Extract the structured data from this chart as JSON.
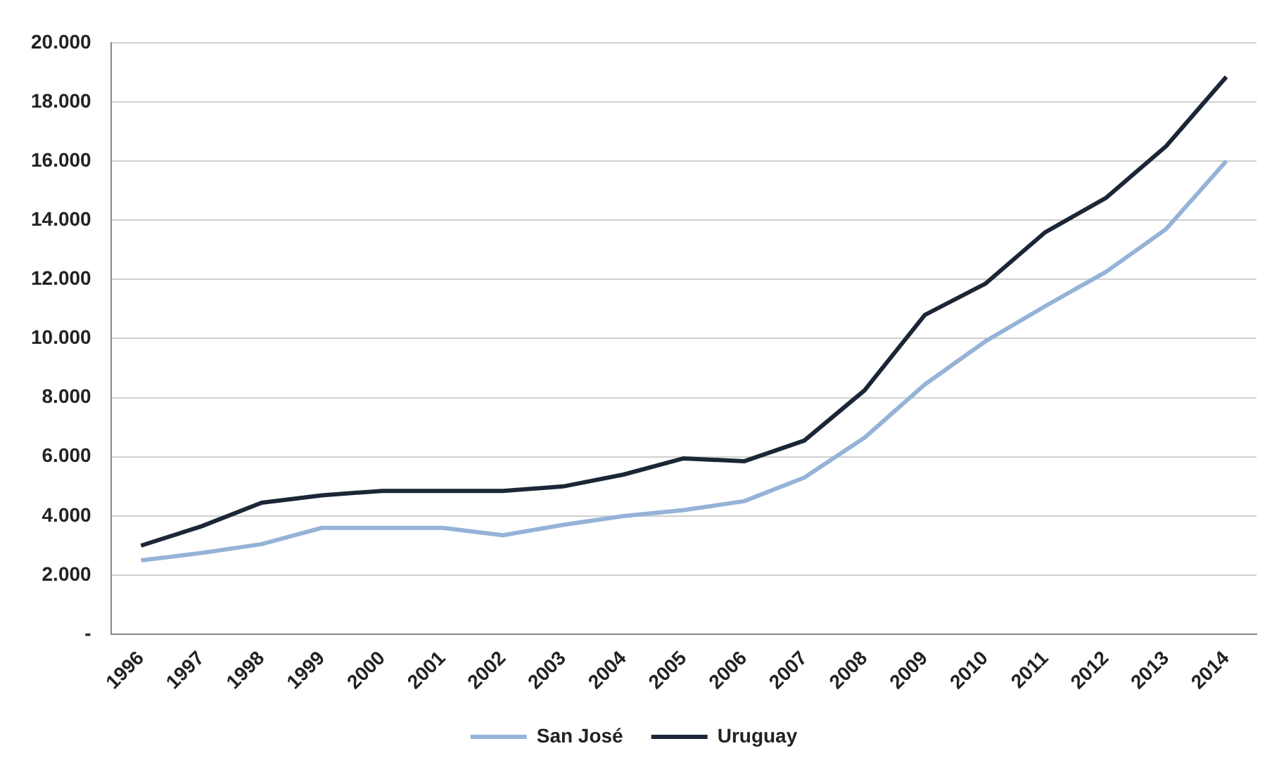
{
  "chart_data": {
    "type": "line",
    "categories": [
      "1996",
      "1997",
      "1998",
      "1999",
      "2000",
      "2001",
      "2002",
      "2003",
      "2004",
      "2005",
      "2006",
      "2007",
      "2008",
      "2009",
      "2010",
      "2011",
      "2012",
      "2013",
      "2014"
    ],
    "series": [
      {
        "name": "San José",
        "color": "#95b3d7",
        "values": [
          2500,
          2750,
          3050,
          3600,
          3600,
          3600,
          3350,
          3700,
          4000,
          4200,
          4500,
          5300,
          6650,
          8450,
          9900,
          11100,
          12250,
          13700,
          16000
        ]
      },
      {
        "name": "Uruguay",
        "color": "#1b2636",
        "values": [
          3000,
          3650,
          4450,
          4700,
          4850,
          4850,
          4850,
          5000,
          5400,
          5950,
          5850,
          6550,
          8250,
          10800,
          11850,
          13600,
          14750,
          16500,
          18850
        ]
      }
    ],
    "ylim": [
      0,
      20000
    ],
    "yticks": [
      {
        "value": 0,
        "label": "-"
      },
      {
        "value": 2000,
        "label": "2.000"
      },
      {
        "value": 4000,
        "label": "4.000"
      },
      {
        "value": 6000,
        "label": "6.000"
      },
      {
        "value": 8000,
        "label": "8.000"
      },
      {
        "value": 10000,
        "label": "10.000"
      },
      {
        "value": 12000,
        "label": "12.000"
      },
      {
        "value": 14000,
        "label": "14.000"
      },
      {
        "value": 16000,
        "label": "16.000"
      },
      {
        "value": 18000,
        "label": "18.000"
      },
      {
        "value": 20000,
        "label": "20.000"
      }
    ],
    "grid": "y",
    "legend": "bottom",
    "marker": "none",
    "line_style": "solid"
  }
}
